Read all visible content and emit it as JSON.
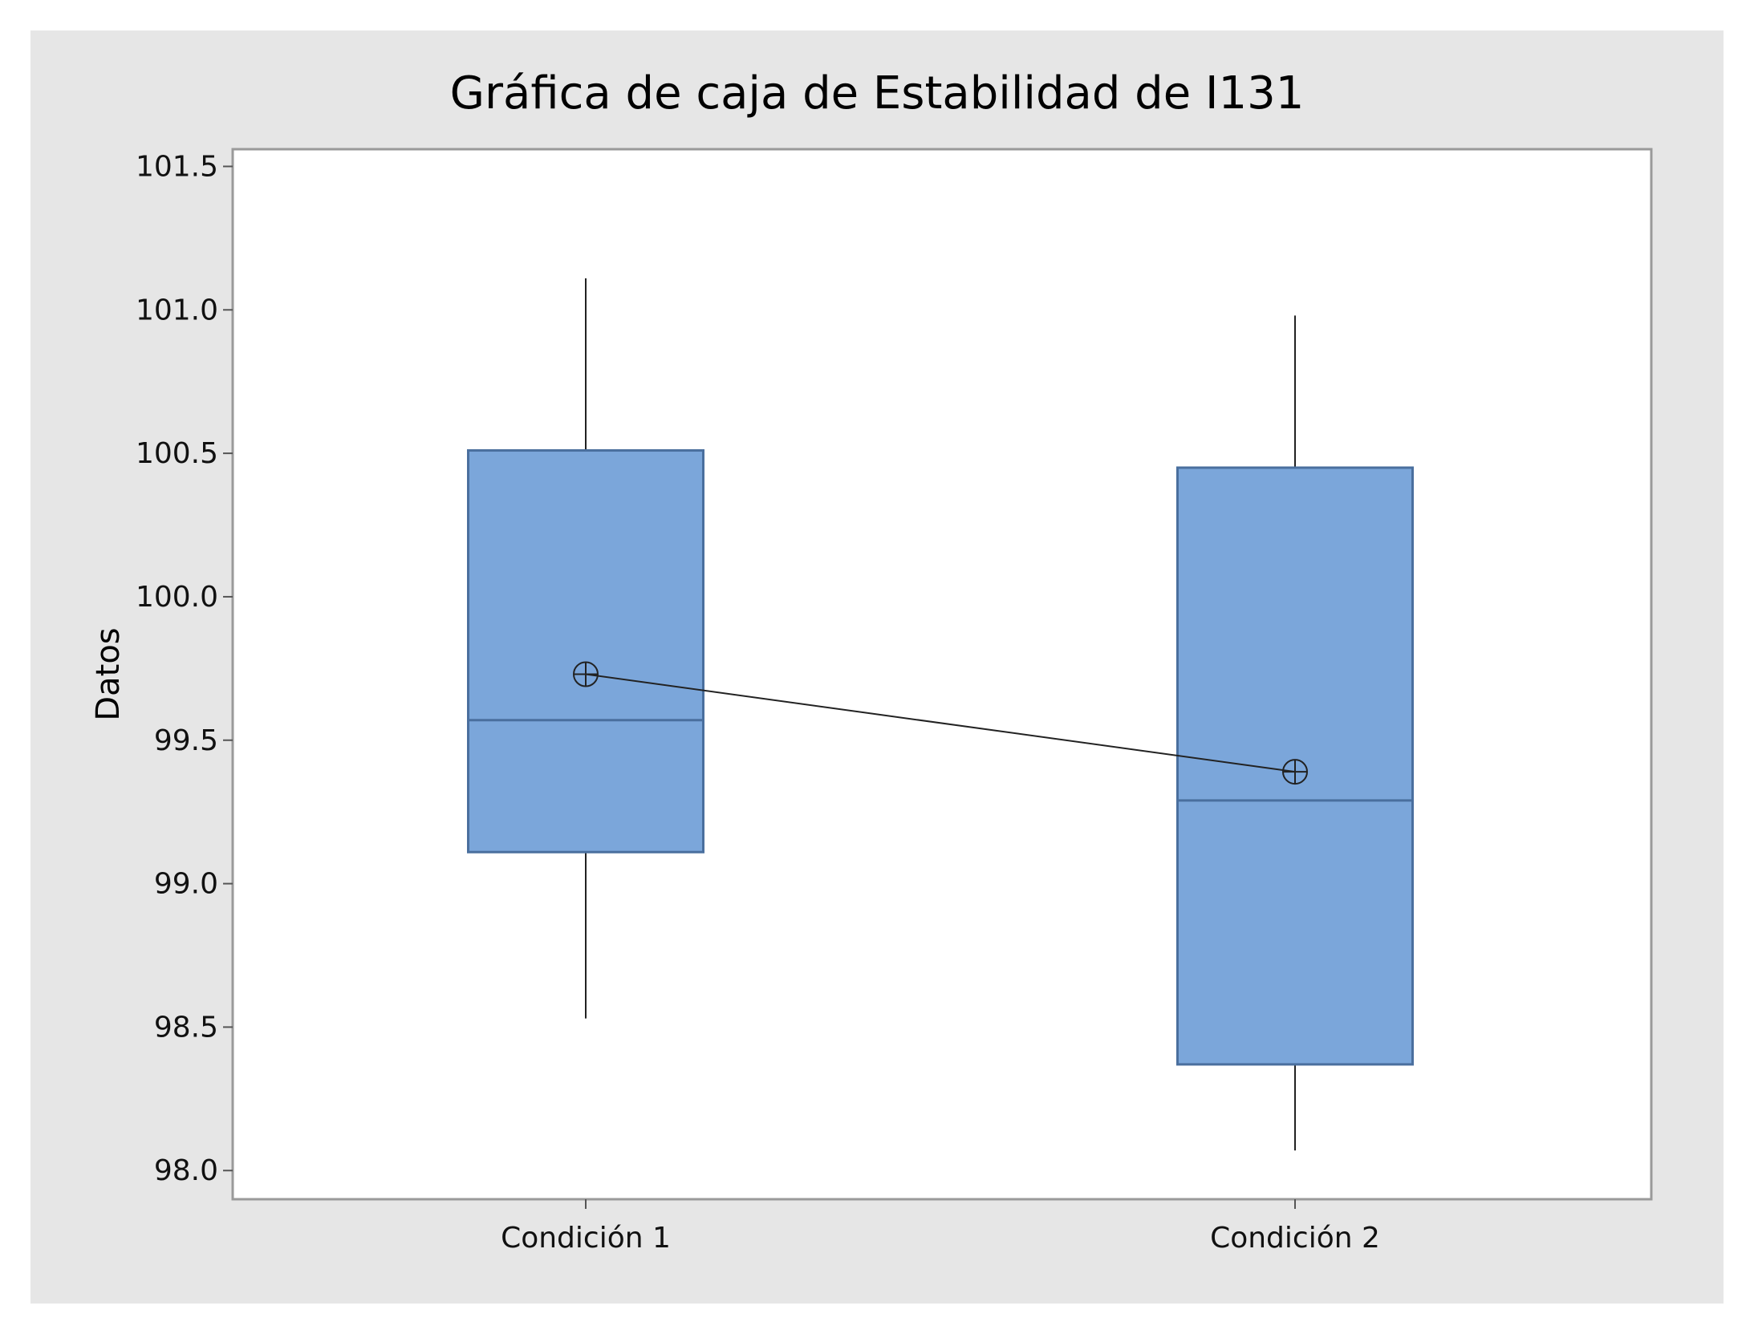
{
  "chart_data": {
    "type": "box",
    "title": "Gráfica de caja de Estabilidad de I131",
    "xlabel": "",
    "ylabel": "Datos",
    "categories": [
      "Condición 1",
      "Condición 2"
    ],
    "ylim": [
      97.9,
      101.56
    ],
    "yticks": [
      98.0,
      98.5,
      99.0,
      99.5,
      100.0,
      100.5,
      101.0,
      101.5
    ],
    "ytick_labels": [
      "98.0",
      "98.5",
      "99.0",
      "99.5",
      "100.0",
      "100.5",
      "101.0",
      "101.5"
    ],
    "boxes": [
      {
        "category": "Condición 1",
        "min": 98.53,
        "q1": 99.11,
        "median": 99.57,
        "q3": 100.51,
        "max": 101.11,
        "mean": 99.73
      },
      {
        "category": "Condición 2",
        "min": 98.07,
        "q1": 98.37,
        "median": 99.29,
        "q3": 100.45,
        "max": 100.98,
        "mean": 99.39
      }
    ],
    "mean_connect_line": true,
    "grid": false,
    "colors": {
      "outer_background": "#e6e6e6",
      "plot_background": "#ffffff",
      "box_fill": "#7ba6da",
      "box_stroke": "#4a6f9e",
      "line": "#222222",
      "frame": "#9a9a9a"
    }
  }
}
